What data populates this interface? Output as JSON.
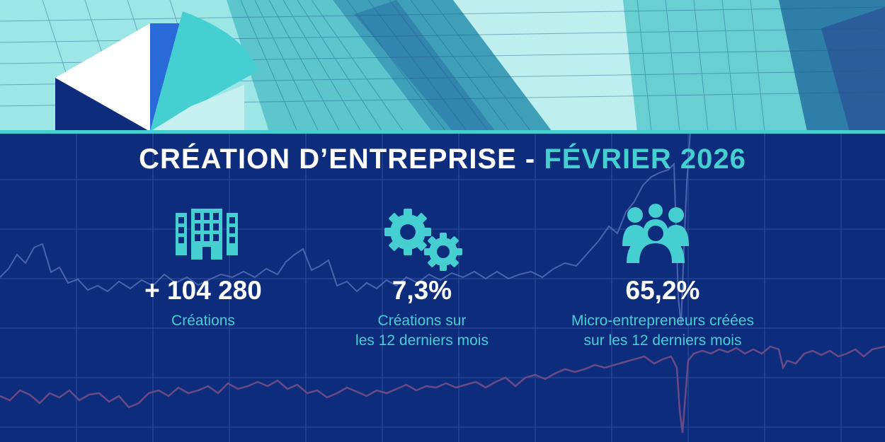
{
  "header": {
    "title_main": "CRÉATION D’ENTREPRISE -",
    "title_accent": "FÉVRIER 2026"
  },
  "stats": [
    {
      "icon": "buildings-icon",
      "value": "+ 104 280",
      "label_line1": "Créations",
      "label_line2": ""
    },
    {
      "icon": "gears-icon",
      "value": "7,3%",
      "label_line1": "Créations sur",
      "label_line2": "les 12 derniers mois"
    },
    {
      "icon": "people-icon",
      "value": "65,2%",
      "label_line1": "Micro-entrepreneurs créées",
      "label_line2": "sur les 12 derniers mois"
    }
  ],
  "colors": {
    "background": "#0d2c7c",
    "accent": "#45cfd0",
    "text": "#ffffff",
    "logo_dark": "#0d2c7c",
    "logo_blue": "#2a6ad8",
    "logo_teal": "#45cfd0"
  }
}
